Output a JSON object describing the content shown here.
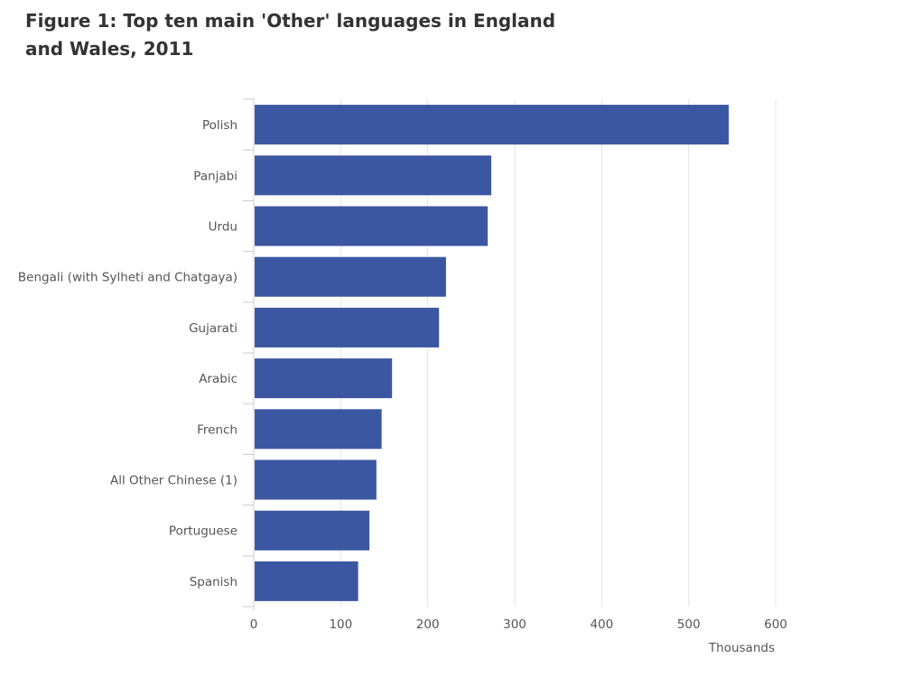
{
  "chart_data": {
    "type": "bar",
    "orientation": "horizontal",
    "title": "Figure 1: Top ten main 'Other' languages in England and Wales, 2011",
    "xlabel": "Thousands",
    "ylabel": "",
    "categories": [
      "Polish",
      "Panjabi",
      "Urdu",
      "Bengali (with Sylheti and Chatgaya)",
      "Gujarati",
      "Arabic",
      "French",
      "All Other Chinese (1)",
      "Portuguese",
      "Spanish"
    ],
    "values": [
      546,
      273,
      269,
      221,
      213,
      159,
      147,
      141,
      133,
      120
    ],
    "xlim": [
      0,
      600
    ],
    "xticks": [
      0,
      100,
      200,
      300,
      400,
      500,
      600
    ],
    "grid": true,
    "legend": "none",
    "bar_color": "#3c57a1"
  }
}
